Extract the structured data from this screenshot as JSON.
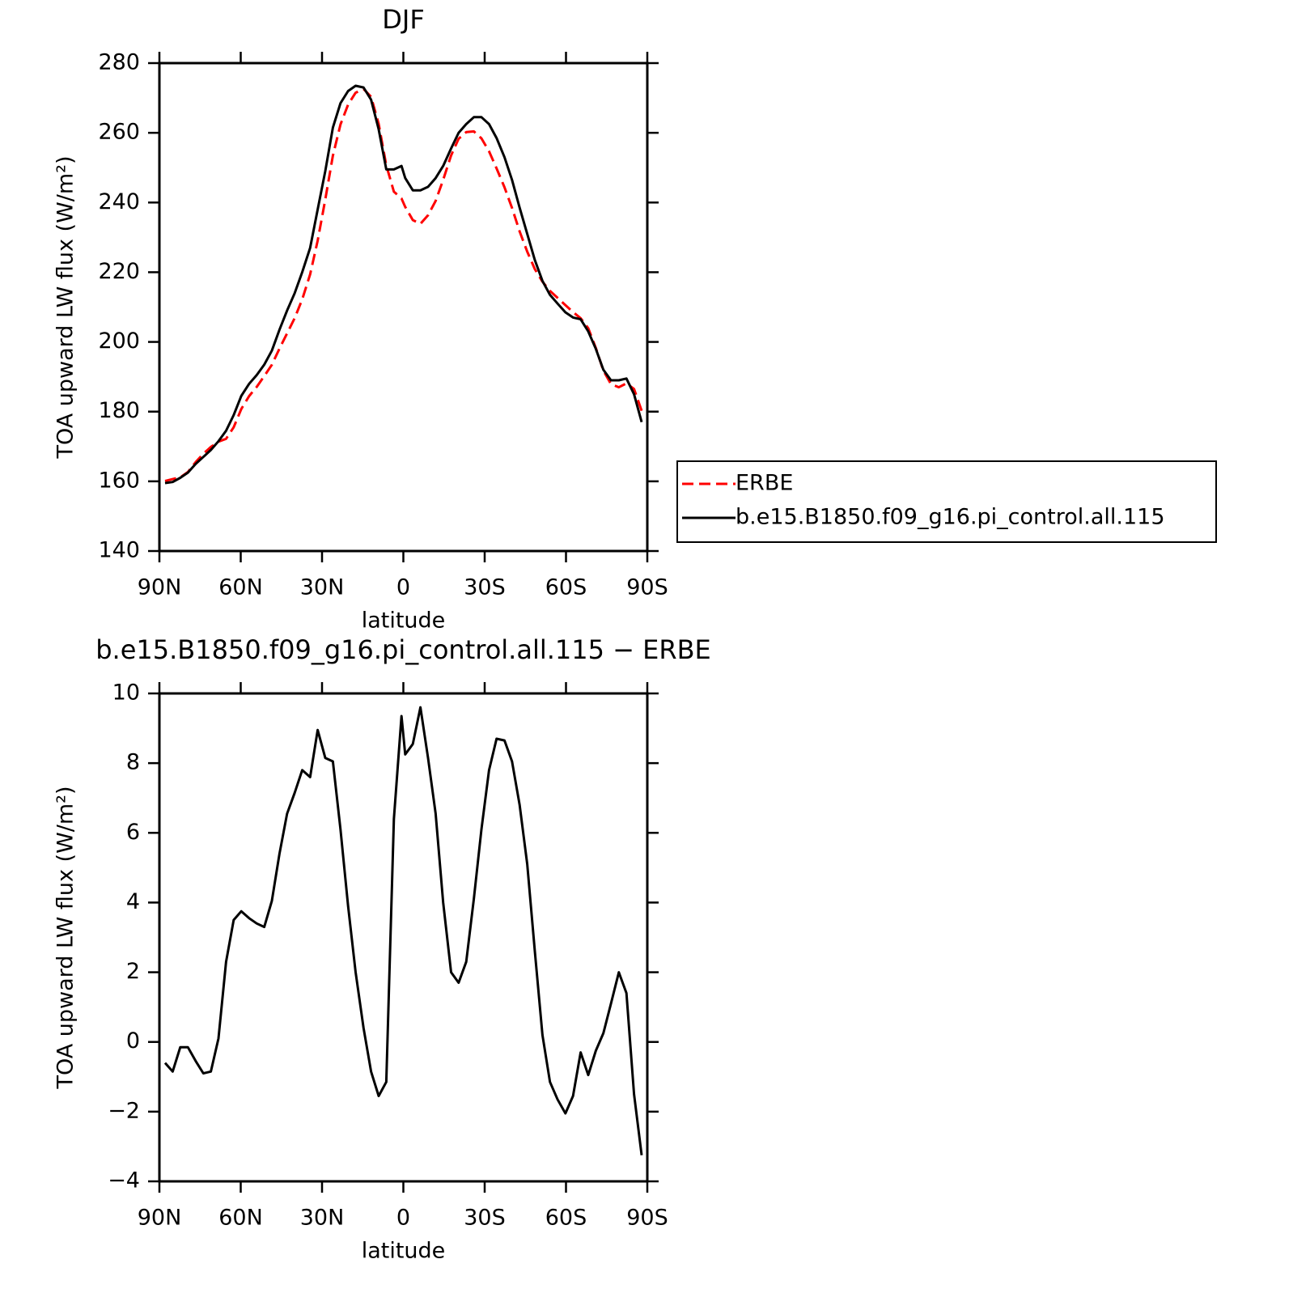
{
  "chart_data": [
    {
      "type": "line",
      "title": "DJF",
      "xlabel": "latitude",
      "ylabel": "TOA upward LW flux (W/m²)",
      "x": [
        87.9,
        85.1,
        82.3,
        79.5,
        76.6,
        73.8,
        71.0,
        68.2,
        65.4,
        62.6,
        59.8,
        56.9,
        54.1,
        51.3,
        48.5,
        45.7,
        42.9,
        40.1,
        37.3,
        34.4,
        31.6,
        28.8,
        26.0,
        23.2,
        20.4,
        17.6,
        14.7,
        11.9,
        9.1,
        6.3,
        3.5,
        0.7,
        -0.7,
        -3.5,
        -6.3,
        -9.1,
        -11.9,
        -14.7,
        -17.6,
        -20.4,
        -23.2,
        -26.0,
        -28.8,
        -31.6,
        -34.4,
        -37.3,
        -40.1,
        -42.9,
        -45.7,
        -48.5,
        -51.3,
        -54.1,
        -56.9,
        -59.8,
        -62.6,
        -65.4,
        -68.2,
        -71.0,
        -73.8,
        -76.6,
        -79.5,
        -82.3,
        -85.1,
        -87.9
      ],
      "series": [
        {
          "name": "ERBE",
          "color": "#ff0000",
          "dash": true,
          "values": [
            160.1,
            160.65,
            161.15,
            162.65,
            165.55,
            167.9,
            169.85,
            171.4,
            172.2,
            175.5,
            180.75,
            184.45,
            187.1,
            190.2,
            193.45,
            198.1,
            202.45,
            206.85,
            212.2,
            219.4,
            229.05,
            240.85,
            253.45,
            262.4,
            268.1,
            271.5,
            272.6,
            270.35,
            262.55,
            250.65,
            243.1,
            241.15,
            238.75,
            234.95,
            233.9,
            236.35,
            240.45,
            246.5,
            253.5,
            258.3,
            260.2,
            260.4,
            258.4,
            254.7,
            249.8,
            244.35,
            238.45,
            231.7,
            225.9,
            220.9,
            217.3,
            214.65,
            212.65,
            210.55,
            208.55,
            206.8,
            203.95,
            198.25,
            191.75,
            187.9,
            187,
            188.1,
            186.5,
            180.25
          ]
        },
        {
          "name": "b.e15.B1850.f09_g16.pi_control.all.115",
          "color": "#000000",
          "dash": false,
          "values": [
            159.5,
            159.8,
            161,
            162.5,
            165,
            167,
            169,
            171.5,
            174.5,
            179,
            184.5,
            188,
            190.5,
            193.5,
            197.5,
            203.5,
            209,
            214,
            220,
            227,
            238,
            249,
            261.5,
            268.5,
            272,
            273.5,
            273,
            269.5,
            261,
            249.5,
            249.5,
            250.5,
            247,
            243.5,
            243.5,
            244.5,
            247,
            250.5,
            255.5,
            260,
            262.5,
            264.5,
            264.5,
            262.5,
            258.5,
            253,
            246.5,
            238.5,
            231,
            223.5,
            217.5,
            213.5,
            211,
            208.5,
            207,
            206.5,
            203,
            198,
            192,
            189,
            189,
            189.5,
            185,
            177
          ]
        }
      ],
      "xlim": [
        90,
        -90
      ],
      "xticks": [
        {
          "value": 90,
          "label": "90N"
        },
        {
          "value": 60,
          "label": "60N"
        },
        {
          "value": 30,
          "label": "30N"
        },
        0,
        {
          "value": -30,
          "label": "30S"
        },
        {
          "value": -60,
          "label": "60S"
        },
        {
          "value": -90,
          "label": "90S"
        }
      ],
      "ylim": [
        140,
        280
      ],
      "yticks": [
        140,
        160,
        180,
        200,
        220,
        240,
        260,
        280
      ],
      "legend": "right"
    },
    {
      "type": "line",
      "title": "b.e15.B1850.f09_g16.pi_control.all.115 − ERBE",
      "xlabel": "latitude",
      "ylabel": "TOA upward LW flux (W/m²)",
      "x": [
        87.9,
        85.1,
        82.3,
        79.5,
        76.6,
        73.8,
        71.0,
        68.2,
        65.4,
        62.6,
        59.8,
        56.9,
        54.1,
        51.3,
        48.5,
        45.7,
        42.9,
        40.1,
        37.3,
        34.4,
        31.6,
        28.8,
        26.0,
        23.2,
        20.4,
        17.6,
        14.7,
        11.9,
        9.1,
        6.3,
        3.5,
        0.7,
        -0.7,
        -3.5,
        -6.3,
        -9.1,
        -11.9,
        -14.7,
        -17.6,
        -20.4,
        -23.2,
        -26.0,
        -28.8,
        -31.6,
        -34.4,
        -37.3,
        -40.1,
        -42.9,
        -45.7,
        -48.5,
        -51.3,
        -54.1,
        -56.9,
        -59.8,
        -62.6,
        -65.4,
        -68.2,
        -71.0,
        -73.8,
        -76.6,
        -79.5,
        -82.3,
        -85.1,
        -87.9
      ],
      "color": "#000000",
      "values": [
        -0.6,
        -0.85,
        -0.15,
        -0.15,
        -0.55,
        -0.9,
        -0.85,
        0.1,
        2.3,
        3.5,
        3.75,
        3.55,
        3.4,
        3.3,
        4.05,
        5.4,
        6.55,
        7.15,
        7.8,
        7.6,
        8.95,
        8.15,
        8.05,
        6.1,
        3.9,
        2.0,
        0.4,
        -0.85,
        -1.55,
        -1.15,
        6.4,
        9.35,
        8.25,
        8.55,
        9.6,
        8.15,
        6.55,
        4.0,
        2.0,
        1.7,
        2.3,
        4.1,
        6.1,
        7.8,
        8.7,
        8.65,
        8.05,
        6.8,
        5.1,
        2.6,
        0.2,
        -1.15,
        -1.65,
        -2.05,
        -1.55,
        -0.3,
        -0.95,
        -0.25,
        0.25,
        1.1,
        2.0,
        1.4,
        -1.5,
        -3.25
      ],
      "xlim": [
        90,
        -90
      ],
      "xticks": [
        {
          "value": 90,
          "label": "90N"
        },
        {
          "value": 60,
          "label": "60N"
        },
        {
          "value": 30,
          "label": "30N"
        },
        0,
        {
          "value": -30,
          "label": "30S"
        },
        {
          "value": -60,
          "label": "60S"
        },
        {
          "value": -90,
          "label": "90S"
        }
      ],
      "ylim": [
        -4,
        10
      ],
      "yticks": [
        {
          "value": -4,
          "label": "−4"
        },
        {
          "value": -2,
          "label": "−2"
        },
        0,
        2,
        4,
        6,
        8,
        10
      ]
    }
  ]
}
